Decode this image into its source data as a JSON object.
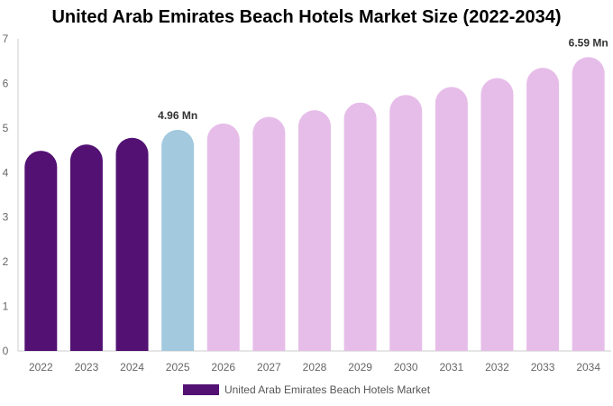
{
  "chart_data": {
    "type": "bar",
    "title": "United Arab Emirates Beach Hotels Market Size (2022-2034)",
    "categories": [
      "2022",
      "2023",
      "2024",
      "2025",
      "2026",
      "2027",
      "2028",
      "2029",
      "2030",
      "2031",
      "2032",
      "2033",
      "2034"
    ],
    "series": [
      {
        "name": "United Arab Emirates Beach Hotels Market",
        "values": [
          4.49,
          4.63,
          4.78,
          4.96,
          5.1,
          5.25,
          5.4,
          5.57,
          5.74,
          5.92,
          6.12,
          6.35,
          6.59
        ]
      }
    ],
    "data_labels": [
      {
        "category": "2025",
        "text": "4.96 Mn"
      },
      {
        "category": "2034",
        "text": "6.59 Mn"
      }
    ],
    "ylim": [
      0,
      7
    ],
    "yticks": [
      0,
      1,
      2,
      3,
      4,
      5,
      6,
      7
    ],
    "xlabel": "",
    "ylabel": "",
    "grid": false,
    "legend_position": "bottom",
    "colors": {
      "historical": "#531173",
      "current": "#a2c9de",
      "forecast": "#e6bde9",
      "axis": "#cccccc"
    }
  }
}
